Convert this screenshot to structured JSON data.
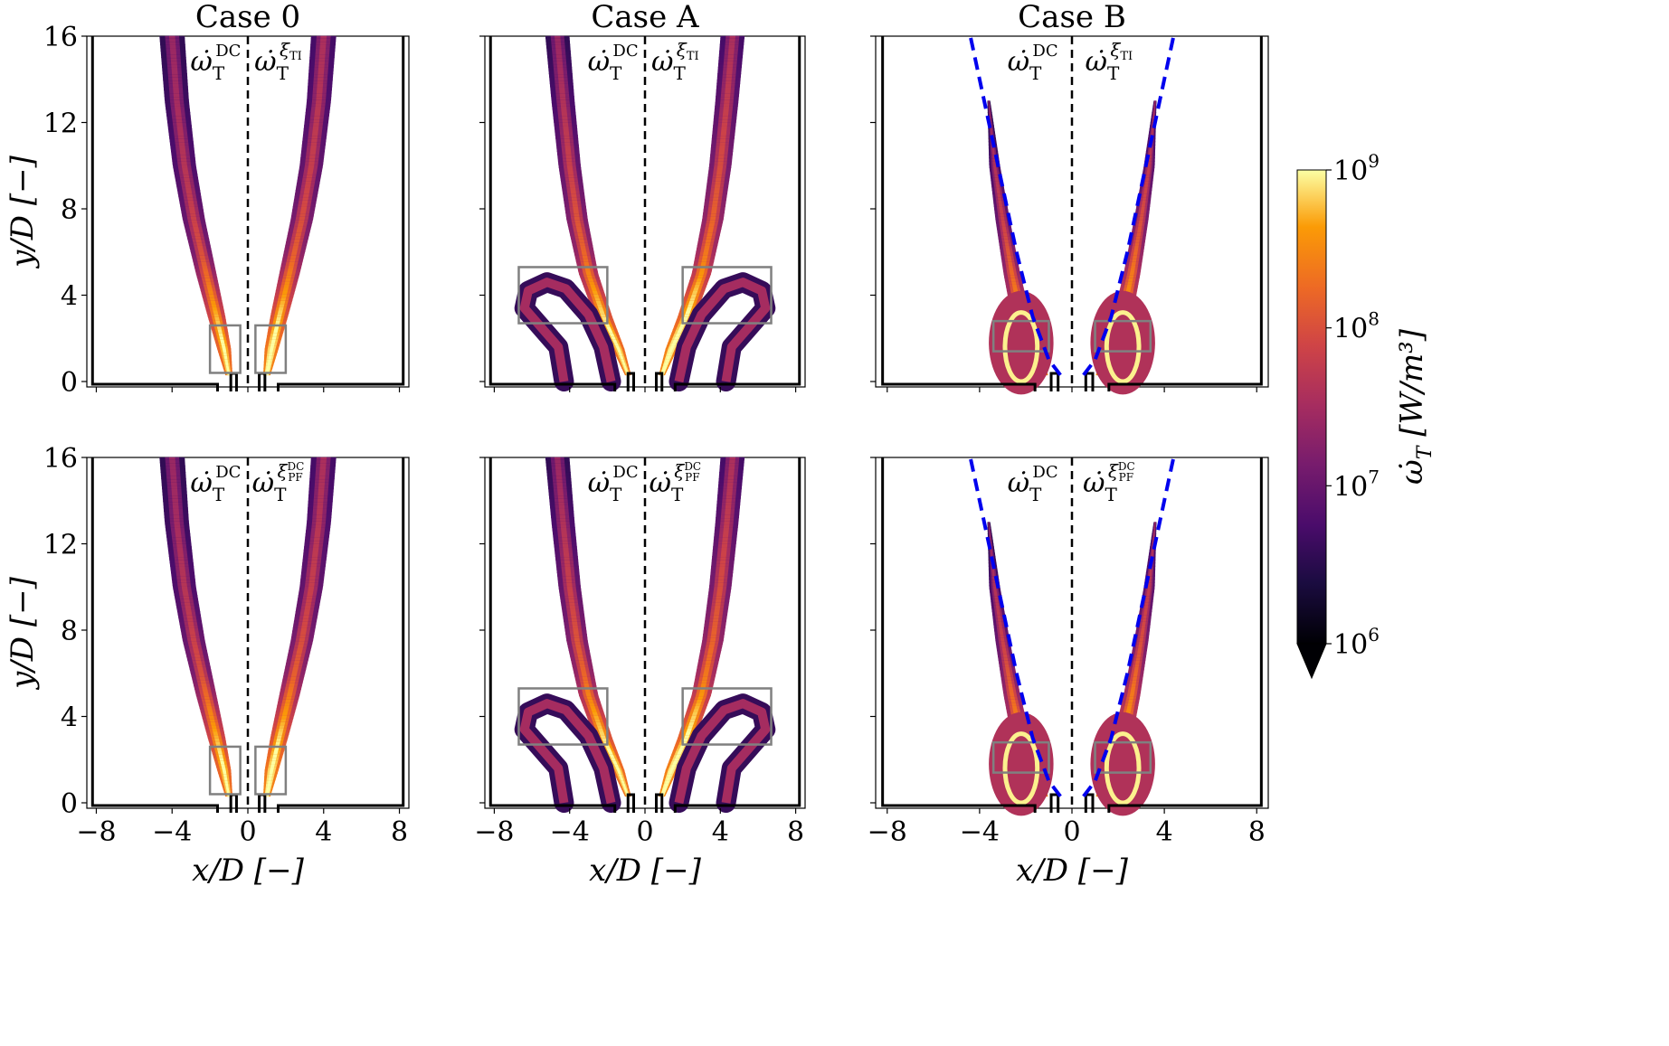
{
  "chart_data": {
    "type": "heatmap",
    "colormap": "inferno",
    "colorbar": {
      "label_main": "ω̇",
      "label_sub": "T",
      "label_unit": " [W/m³]",
      "ticks": [
        {
          "base": "10",
          "exp": "6",
          "value": 6
        },
        {
          "base": "10",
          "exp": "7",
          "value": 7
        },
        {
          "base": "10",
          "exp": "8",
          "value": 8
        },
        {
          "base": "10",
          "exp": "9",
          "value": 9
        }
      ],
      "log_range": [
        6,
        9
      ],
      "extend": "min"
    },
    "x_axis": {
      "label": "x/D [−]",
      "range": [
        -8.5,
        8.5
      ],
      "ticks": [
        {
          "v": -8,
          "t": "−8"
        },
        {
          "v": -4,
          "t": "−4"
        },
        {
          "v": 0,
          "t": "0"
        },
        {
          "v": 4,
          "t": "4"
        },
        {
          "v": 8,
          "t": "8"
        }
      ]
    },
    "y_axis": {
      "label": "y/D [−]",
      "range": [
        0,
        16
      ],
      "ticks": [
        {
          "v": 0,
          "t": "0"
        },
        {
          "v": 4,
          "t": "4"
        },
        {
          "v": 8,
          "t": "8"
        },
        {
          "v": 12,
          "t": "12"
        },
        {
          "v": 16,
          "t": "16"
        }
      ]
    },
    "columns": [
      "Case 0",
      "Case A",
      "Case B"
    ],
    "rows": [
      {
        "left_label": {
          "main": "ω̇",
          "sub": "T",
          "sup": "DC"
        },
        "right_label": {
          "main": "ω̇",
          "sub": "T",
          "sup": "ξ",
          "supsub": "TI"
        }
      },
      {
        "left_label": {
          "main": "ω̇",
          "sub": "T",
          "sup": "DC"
        },
        "right_label": {
          "main": "ω̇",
          "sub": "T",
          "sup": "ξ",
          "supsub": "PF",
          "supsup": "DC"
        }
      }
    ],
    "cases": {
      "Case 0": {
        "centerline": [
          [
            1.0,
            0.3
          ],
          [
            1.25,
            1.5
          ],
          [
            1.65,
            3
          ],
          [
            2.2,
            5
          ],
          [
            2.85,
            7.5
          ],
          [
            3.35,
            10
          ],
          [
            3.75,
            13
          ],
          [
            4.0,
            16
          ]
        ],
        "width": [
          [
            0.3,
            0.35
          ],
          [
            1.5,
            0.7
          ],
          [
            3,
            0.9
          ],
          [
            5,
            1.05
          ],
          [
            7.5,
            1.15
          ],
          [
            10,
            1.2
          ],
          [
            13,
            1.25
          ],
          [
            16,
            1.3
          ]
        ],
        "intensity": [
          [
            0.3,
            8.9
          ],
          [
            2,
            8.7
          ],
          [
            4,
            8.2
          ],
          [
            6,
            7.7
          ],
          [
            9,
            7.4
          ],
          [
            13,
            7.2
          ],
          [
            16,
            7.1
          ]
        ],
        "boxes": [
          [
            0.4,
            0.4,
            2.0,
            2.6
          ]
        ],
        "dashed_fit": false
      },
      "Case A": {
        "centerline": [
          [
            0.9,
            0.3
          ],
          [
            1.4,
            1.5
          ],
          [
            2.2,
            3
          ],
          [
            3.0,
            5
          ],
          [
            3.6,
            7.5
          ],
          [
            4.0,
            10
          ],
          [
            4.35,
            13
          ],
          [
            4.65,
            16
          ]
        ],
        "width": [
          [
            0.3,
            0.3
          ],
          [
            1.5,
            0.6
          ],
          [
            3,
            0.9
          ],
          [
            5,
            1.0
          ],
          [
            7.5,
            1.1
          ],
          [
            10,
            1.15
          ],
          [
            13,
            1.2
          ],
          [
            16,
            1.25
          ]
        ],
        "intensity": [
          [
            0.3,
            8.9
          ],
          [
            2,
            8.8
          ],
          [
            4,
            8.4
          ],
          [
            6,
            7.9
          ],
          [
            9,
            7.6
          ],
          [
            13,
            7.3
          ],
          [
            16,
            7.1
          ]
        ],
        "hook": true,
        "boxes": [
          [
            2.0,
            2.7,
            6.7,
            5.3
          ]
        ],
        "dashed_fit": false
      },
      "Case B": {
        "centerline": [
          [
            1.3,
            0.3
          ],
          [
            1.8,
            1.5
          ],
          [
            2.2,
            3
          ],
          [
            2.6,
            5
          ],
          [
            3.0,
            7.5
          ],
          [
            3.35,
            10
          ],
          [
            3.6,
            13
          ]
        ],
        "width": [
          [
            0.3,
            0.5
          ],
          [
            1.5,
            0.9
          ],
          [
            3,
            0.8
          ],
          [
            5,
            0.7
          ],
          [
            7.5,
            0.6
          ],
          [
            10,
            0.45
          ],
          [
            13,
            0.1
          ]
        ],
        "intensity": [
          [
            0.3,
            9.0
          ],
          [
            2,
            8.8
          ],
          [
            4,
            8.1
          ],
          [
            7,
            7.6
          ],
          [
            10,
            7.3
          ],
          [
            13,
            7.0
          ]
        ],
        "bulb": true,
        "boxes": [
          [
            1.0,
            1.4,
            3.4,
            2.8
          ]
        ],
        "dashed_fit": true,
        "fit_curve": [
          [
            0.5,
            0.3
          ],
          [
            1.0,
            1
          ],
          [
            1.7,
            3
          ],
          [
            2.4,
            6
          ],
          [
            3.2,
            10
          ],
          [
            4.0,
            14
          ],
          [
            4.4,
            16
          ]
        ]
      }
    }
  }
}
